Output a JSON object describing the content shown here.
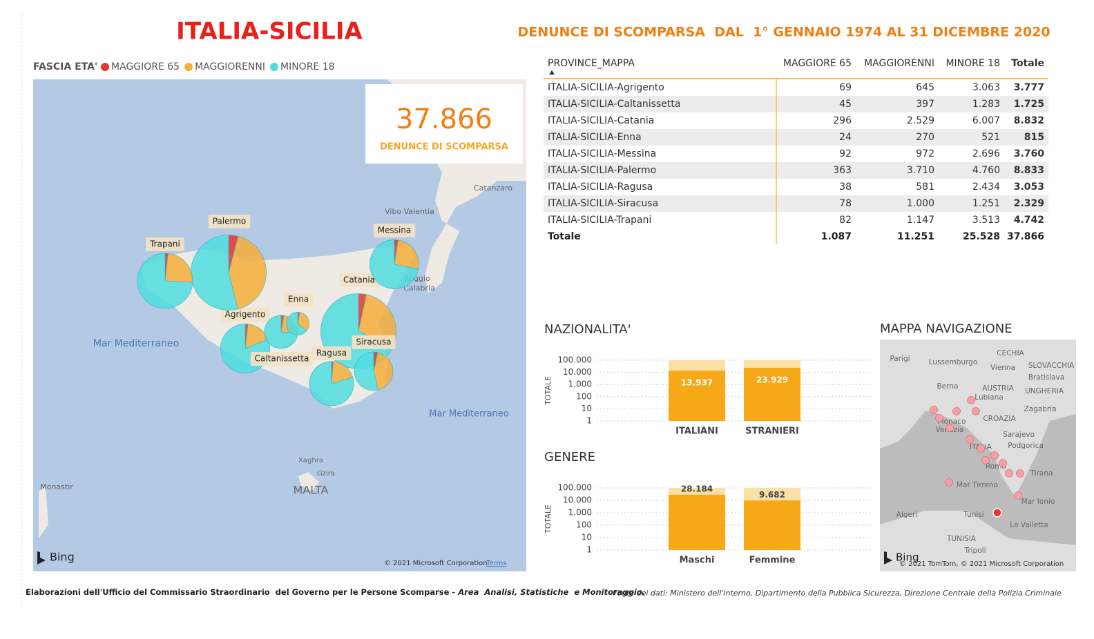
{
  "title": "ITALIA-SICILIA",
  "subtitle": "DENUNCE DI SCOMPARSA  DAL  1° GENNAIO 1974 AL 31 DICEMBRE 2020",
  "map": {
    "legend_title": "FASCIA ETA'",
    "legend": [
      {
        "name": "MAGGIORE 65",
        "color": "#e8352e"
      },
      {
        "name": "MAGGIORENNI",
        "color": "#f5ae3a"
      },
      {
        "name": "MINORE 18",
        "color": "#4fdde0"
      }
    ],
    "kpi": {
      "value": "37.866",
      "label": "DENUNCE DI SCOMPARSA"
    },
    "provinces": [
      {
        "name": "Agrigento",
        "values": [
          69,
          645,
          3063
        ]
      },
      {
        "name": "Caltanissetta",
        "values": [
          45,
          397,
          1283
        ]
      },
      {
        "name": "Catania",
        "values": [
          296,
          2529,
          6007
        ]
      },
      {
        "name": "Enna",
        "values": [
          24,
          270,
          521
        ]
      },
      {
        "name": "Messina",
        "values": [
          92,
          972,
          2696
        ]
      },
      {
        "name": "Palermo",
        "values": [
          363,
          3710,
          4760
        ]
      },
      {
        "name": "Ragusa",
        "values": [
          38,
          581,
          2434
        ]
      },
      {
        "name": "Siracusa",
        "values": [
          78,
          1000,
          1251
        ]
      },
      {
        "name": "Trapani",
        "values": [
          82,
          1147,
          3513
        ]
      }
    ],
    "places": [
      "Mar Mediterraneo",
      "Mar Mediterraneo",
      "Catanzaro",
      "Vibo Valentia",
      "Reggio",
      "Calabria",
      "MALTA",
      "Xaghra",
      "Gzira",
      "Monastir"
    ],
    "bing": "Bing",
    "attribution": "© 2021 Microsoft Corporation",
    "terms": "Terms"
  },
  "table": {
    "headers": [
      "PROVINCE_MAPPA",
      "MAGGIORE 65",
      "MAGGIORENNI",
      "MINORE 18",
      "Totale"
    ],
    "rows": [
      [
        "ITALIA-SICILIA-Agrigento",
        "69",
        "645",
        "3.063",
        "3.777"
      ],
      [
        "ITALIA-SICILIA-Caltanissetta",
        "45",
        "397",
        "1.283",
        "1.725"
      ],
      [
        "ITALIA-SICILIA-Catania",
        "296",
        "2.529",
        "6.007",
        "8.832"
      ],
      [
        "ITALIA-SICILIA-Enna",
        "24",
        "270",
        "521",
        "815"
      ],
      [
        "ITALIA-SICILIA-Messina",
        "92",
        "972",
        "2.696",
        "3.760"
      ],
      [
        "ITALIA-SICILIA-Palermo",
        "363",
        "3.710",
        "4.760",
        "8.833"
      ],
      [
        "ITALIA-SICILIA-Ragusa",
        "38",
        "581",
        "2.434",
        "3.053"
      ],
      [
        "ITALIA-SICILIA-Siracusa",
        "78",
        "1.000",
        "1.251",
        "2.329"
      ],
      [
        "ITALIA-SICILIA-Trapani",
        "82",
        "1.147",
        "3.513",
        "4.742"
      ]
    ],
    "total": [
      "Totale",
      "1.087",
      "11.251",
      "25.528",
      "37.866"
    ]
  },
  "chart_data": [
    {
      "type": "bar",
      "title": "NAZIONALITA'",
      "y_label": "TOTALE",
      "categories": [
        "ITALIANI",
        "STRANIERI"
      ],
      "values": [
        13937,
        23929
      ],
      "value_labels": [
        "13.937",
        "23.929"
      ],
      "color": "#f7a816",
      "log": true,
      "ylim": [
        1,
        100000
      ],
      "yticks": [
        {
          "value": 100000,
          "label": "100.000"
        },
        {
          "value": 10000,
          "label": "10.000"
        },
        {
          "value": 1000,
          "label": "1.000"
        },
        100,
        10,
        1
      ],
      "grid": true
    },
    {
      "type": "bar",
      "title": "GENERE",
      "y_label": "TOTALE",
      "categories": [
        "Maschi",
        "Femmine"
      ],
      "values": [
        28184,
        9682
      ],
      "value_labels": [
        "28.184",
        "9.682"
      ],
      "color": "#f7a816",
      "log": true,
      "ylim": [
        1,
        100000
      ],
      "yticks": [
        {
          "value": 100000,
          "label": "100.000"
        },
        {
          "value": 10000,
          "label": "10.000"
        },
        {
          "value": 1000,
          "label": "1.000"
        },
        100,
        10,
        1
      ],
      "grid": true
    }
  ],
  "nav_map": {
    "title": "MAPPA NAVIGAZIONE",
    "places": [
      "Parigi",
      "Lussemburgo",
      "Berna",
      "Vienna",
      "Bratislava",
      "CECHIA",
      "SLOVACCHIA",
      "AUSTRIA",
      "UNGHERIA",
      "Lubiana",
      "Zagabria",
      "CROAZIA",
      "Monaco",
      "Venezia",
      "Sarajevo",
      "Podgorica",
      "ITALIA",
      "Roma",
      "Tirana",
      "Mar Tirreno",
      "Mar Ionio",
      "Algeri",
      "Tunisi",
      "La Valletta",
      "TUNISIA",
      "Tripoli"
    ],
    "bing": "Bing",
    "attribution": "© 2021 TomTom, © 2021 Microsoft Corporation"
  },
  "footer": {
    "left": "Elaborazioni dell'Ufficio del Commissario Straordinario  del Governo per le Persone Scomparse - ",
    "left_italic": "Area  Analisi, Statistiche  e Monitoraggio.",
    "right": "Fonte dei dati: Ministero dell'Interno, Dipartimento della Pubblica Sicurezza, Direzione Centrale della Polizia Criminale"
  }
}
